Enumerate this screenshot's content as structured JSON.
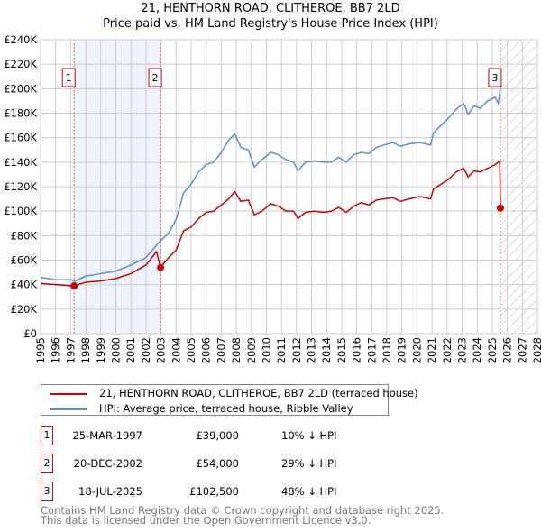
{
  "chart_data": {
    "type": "line",
    "title": "21, HENTHORN ROAD, CLITHEROE, BB7 2LD",
    "subtitle": "Price paid vs. HM Land Registry's House Price Index (HPI)",
    "xlim": [
      1995,
      2028
    ],
    "ylim": [
      0,
      240000
    ],
    "x_ticks": [
      "1995",
      "1996",
      "1997",
      "1998",
      "1999",
      "2000",
      "2001",
      "2002",
      "2003",
      "2004",
      "2005",
      "2006",
      "2007",
      "2008",
      "2009",
      "2010",
      "2011",
      "2012",
      "2013",
      "2014",
      "2015",
      "2016",
      "2017",
      "2018",
      "2019",
      "2020",
      "2021",
      "2022",
      "2023",
      "2024",
      "2025",
      "2026",
      "2027",
      "2028"
    ],
    "y_ticks": [
      {
        "v": 0,
        "l": "£0"
      },
      {
        "v": 20000,
        "l": "£20K"
      },
      {
        "v": 40000,
        "l": "£40K"
      },
      {
        "v": 60000,
        "l": "£60K"
      },
      {
        "v": 80000,
        "l": "£80K"
      },
      {
        "v": 100000,
        "l": "£100K"
      },
      {
        "v": 120000,
        "l": "£120K"
      },
      {
        "v": 140000,
        "l": "£140K"
      },
      {
        "v": 160000,
        "l": "£160K"
      },
      {
        "v": 180000,
        "l": "£180K"
      },
      {
        "v": 200000,
        "l": "£200K"
      },
      {
        "v": 220000,
        "l": "£220K"
      },
      {
        "v": 240000,
        "l": "£240K"
      }
    ],
    "grid": true,
    "shaded_range": [
      1997.23,
      2002.97
    ],
    "forecast_hatch_from": 2025.6,
    "series": [
      {
        "name": "21, HENTHORN ROAD, CLITHEROE, BB7 2LD (terraced house)",
        "color": "#cc0000",
        "x": [
          1995,
          1996,
          1997,
          1997.23,
          1998,
          1999,
          2000,
          2001,
          2002,
          2002.7,
          2002.97,
          2003.5,
          2004,
          2004.5,
          2005,
          2005.5,
          2006,
          2006.5,
          2007,
          2007.5,
          2007.9,
          2008.3,
          2008.8,
          2009.2,
          2009.7,
          2010.3,
          2010.8,
          2011.3,
          2011.8,
          2012.1,
          2012.6,
          2013.2,
          2013.8,
          2014.3,
          2014.8,
          2015.3,
          2015.8,
          2016.3,
          2016.8,
          2017.3,
          2017.8,
          2018.4,
          2018.9,
          2019.5,
          2020.2,
          2020.9,
          2021.1,
          2021.6,
          2022.1,
          2022.6,
          2023.1,
          2023.4,
          2023.8,
          2024.2,
          2024.7,
          2025.2,
          2025.4,
          2025.5,
          2025.54
        ],
        "y": [
          41000,
          40000,
          39000,
          39000,
          42000,
          43000,
          45000,
          49000,
          56000,
          67000,
          54000,
          62000,
          68000,
          84000,
          87000,
          94000,
          99000,
          100000,
          105000,
          110000,
          116000,
          108000,
          109000,
          97000,
          100000,
          106000,
          104000,
          100000,
          100000,
          94000,
          99000,
          100000,
          99000,
          100000,
          103000,
          99000,
          104000,
          107000,
          105000,
          109000,
          110000,
          111000,
          108000,
          110000,
          112000,
          110000,
          118000,
          122000,
          126000,
          132000,
          135000,
          128000,
          133000,
          132000,
          135000,
          138000,
          140000,
          140000,
          102500
        ]
      },
      {
        "name": "HPI: Average price, terraced house, Ribble Valley",
        "color": "#5b8fd0",
        "x": [
          1995,
          1996,
          1997,
          1997.3,
          1998,
          1999,
          2000,
          2001,
          2002,
          2002.9,
          2003.5,
          2004,
          2004.5,
          2005,
          2005.5,
          2006,
          2006.5,
          2007,
          2007.5,
          2007.9,
          2008.3,
          2008.8,
          2009.2,
          2009.7,
          2010.3,
          2010.8,
          2011.3,
          2011.8,
          2012.1,
          2012.6,
          2013.2,
          2013.8,
          2014.3,
          2014.8,
          2015.3,
          2015.8,
          2016.3,
          2016.8,
          2017.3,
          2017.8,
          2018.4,
          2018.9,
          2019.5,
          2020.2,
          2020.9,
          2021.1,
          2021.6,
          2022.1,
          2022.6,
          2023.1,
          2023.4,
          2023.8,
          2024.2,
          2024.7,
          2025.2,
          2025.4,
          2025.55
        ],
        "y": [
          46000,
          44000,
          44000,
          43000,
          47000,
          49000,
          51000,
          56000,
          62000,
          75000,
          82000,
          93000,
          115000,
          122000,
          132000,
          138000,
          140000,
          148000,
          158000,
          163000,
          152000,
          150000,
          136000,
          142000,
          148000,
          146000,
          142000,
          140000,
          133000,
          140000,
          141000,
          140000,
          140000,
          144000,
          140000,
          146000,
          148000,
          147000,
          152000,
          154000,
          156000,
          153000,
          155000,
          156000,
          154000,
          164000,
          170000,
          176000,
          183000,
          188000,
          179000,
          186000,
          184000,
          190000,
          193000,
          188000,
          201000
        ]
      }
    ],
    "sales": [
      {
        "label": "1",
        "x": 1997.23,
        "y": 39000,
        "date": "25-MAR-1997",
        "price": "£39,000",
        "hpi": "10% ↓ HPI"
      },
      {
        "label": "2",
        "x": 2002.97,
        "y": 54000,
        "date": "20-DEC-2002",
        "price": "£54,000",
        "hpi": "29% ↓ HPI"
      },
      {
        "label": "3",
        "x": 2025.54,
        "y": 102500,
        "date": "18-JUL-2025",
        "price": "£102,500",
        "hpi": "48% ↓ HPI"
      }
    ]
  },
  "footer": {
    "line1": "Contains HM Land Registry data © Crown copyright and database right 2025.",
    "line2": "This data is licensed under the Open Government Licence v3.0."
  }
}
